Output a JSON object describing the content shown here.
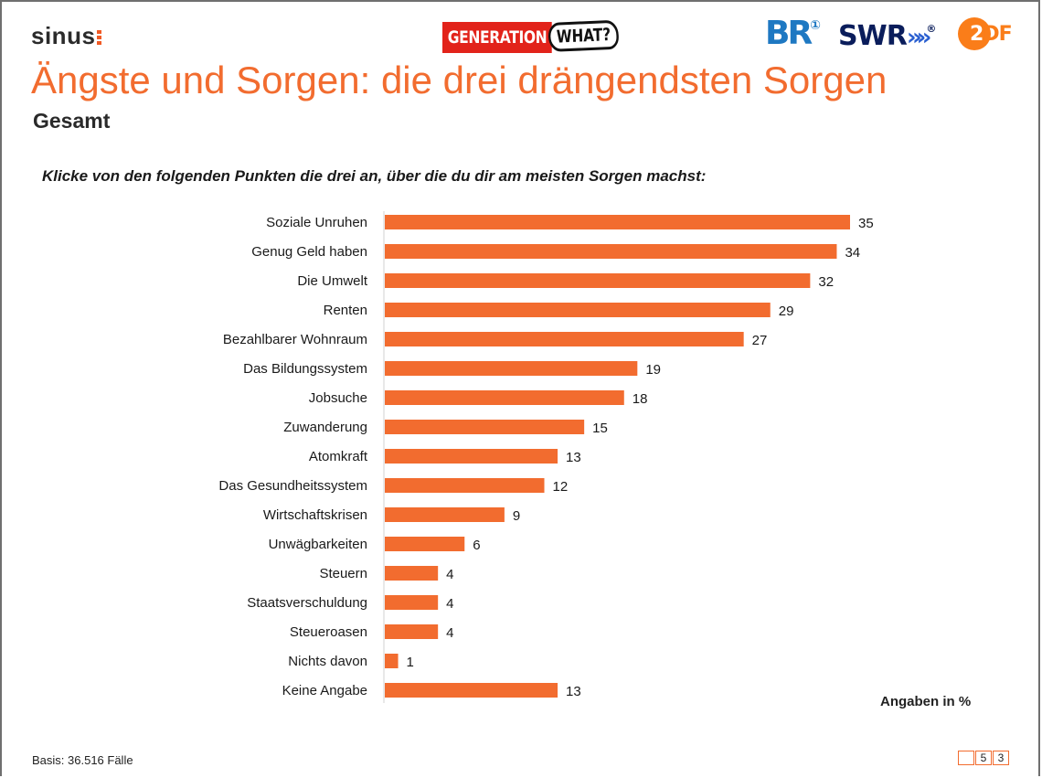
{
  "header": {
    "brand": "sinus",
    "generation_logo": {
      "left": "GENERATION",
      "right": "WHAT?"
    },
    "br_logo": {
      "text": "BR",
      "mark": "①"
    },
    "swr_logo": {
      "text": "SWR",
      "arrows": "»»",
      "mark": "®"
    },
    "zdf_logo": {
      "first": "2",
      "rest": "DF"
    }
  },
  "title": "Ängste und Sorgen: die drei drängendsten Sorgen",
  "subtitle": "Gesamt",
  "question": "Klicke von den folgenden Punkten die drei an, über die du dir am meisten Sorgen machst:",
  "unit_note": "Angaben in %",
  "basis": "Basis: 36.516 Fälle",
  "page": {
    "box1": "",
    "box2": "5",
    "box3": "3"
  },
  "colors": {
    "bar": "#f26c2f",
    "title": "#f26c2f",
    "axis": "#d0d0d0"
  },
  "chart_data": {
    "type": "bar",
    "orientation": "horizontal",
    "title": "Ängste und Sorgen: die drei drängendsten Sorgen",
    "xlabel": "",
    "ylabel": "",
    "unit": "%",
    "xlim": [
      0,
      35
    ],
    "categories": [
      "Soziale Unruhen",
      "Genug Geld haben",
      "Die Umwelt",
      "Renten",
      "Bezahlbarer Wohnraum",
      "Das Bildungssystem",
      "Jobsuche",
      "Zuwanderung",
      "Atomkraft",
      "Das Gesundheitssystem",
      "Wirtschaftskrisen",
      "Unwägbarkeiten",
      "Steuern",
      "Staatsverschuldung",
      "Steueroasen",
      "Nichts davon",
      "Keine Angabe"
    ],
    "values": [
      35,
      34,
      32,
      29,
      27,
      19,
      18,
      15,
      13,
      12,
      9,
      6,
      4,
      4,
      4,
      1,
      13
    ],
    "grid": false,
    "legend": "none"
  }
}
